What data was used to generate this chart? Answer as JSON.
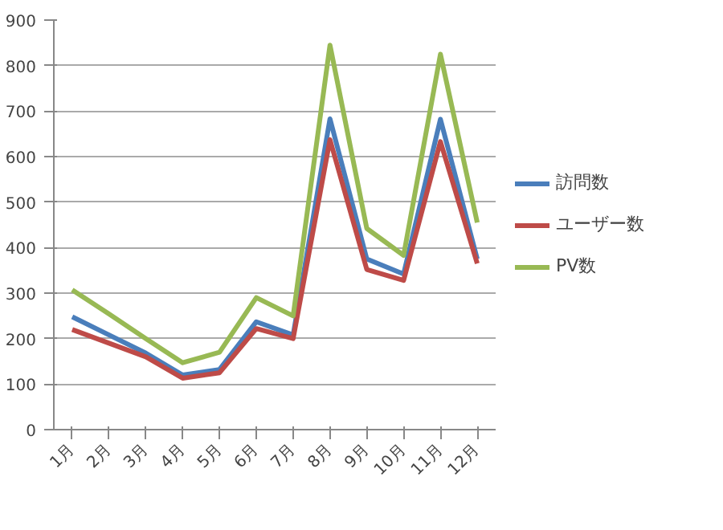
{
  "chart_data": {
    "type": "line",
    "categories": [
      "1月",
      "2月",
      "3月",
      "4月",
      "5月",
      "6月",
      "7月",
      "8月",
      "9月",
      "10月",
      "11月",
      "12月"
    ],
    "series": [
      {
        "name": "訪問数",
        "color": "#4a7ebb",
        "values": [
          248,
          208,
          168,
          120,
          132,
          237,
          208,
          683,
          375,
          342,
          682,
          375
        ]
      },
      {
        "name": "ユーザー数",
        "color": "#be4b48",
        "values": [
          220,
          190,
          160,
          113,
          125,
          222,
          200,
          637,
          352,
          328,
          633,
          365
        ]
      },
      {
        "name": "PV数",
        "color": "#98b954",
        "values": [
          307,
          254,
          200,
          147,
          170,
          290,
          250,
          845,
          442,
          383,
          825,
          455
        ]
      }
    ],
    "ylim": [
      0,
      900
    ],
    "yticks": [
      0,
      100,
      200,
      300,
      400,
      500,
      600,
      700,
      800,
      900
    ],
    "grid": "y",
    "legend": "right",
    "marker": "none",
    "line_style": "solid"
  }
}
